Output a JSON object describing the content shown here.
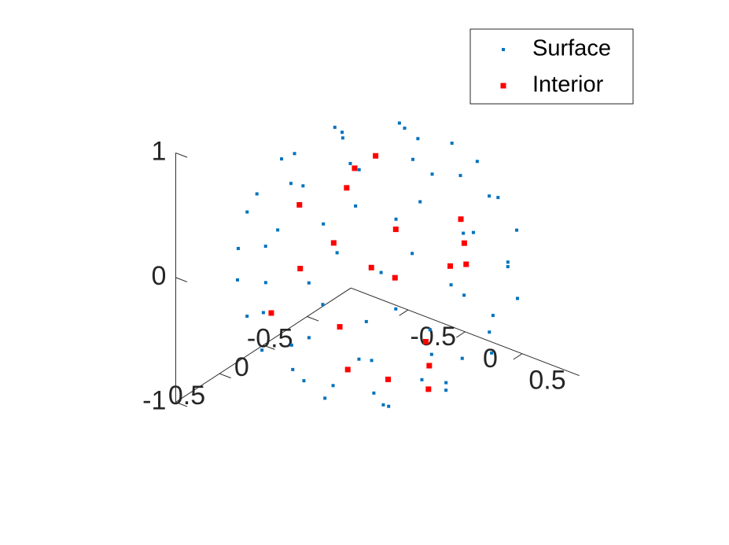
{
  "chart_data": {
    "type": "scatter3d",
    "xlim": [
      -1,
      1
    ],
    "ylim": [
      -1,
      1
    ],
    "zlim": [
      -1,
      1
    ],
    "xticks": [
      -0.5,
      0,
      0.5
    ],
    "yticks": [
      -0.5,
      0,
      0.5
    ],
    "zticks": [
      -1,
      0,
      1
    ],
    "view": {
      "azimuth": -37.5,
      "elevation": 30
    },
    "legend": "northeast",
    "series": [
      {
        "name": "Surface",
        "color": "#0072bd",
        "x": [
          0.31,
          0,
          -0.31,
          0,
          0.55,
          0.23,
          -0.23,
          -0.55,
          -0.55,
          -0.23,
          0.23,
          0.55,
          0.84,
          0.68,
          0.26,
          -0.26,
          -0.68,
          -0.84,
          -0.68,
          -0.26,
          0.26,
          0.68,
          0.95,
          0.69,
          0.25,
          -0.25,
          -0.69,
          -0.95,
          -0.95,
          -0.69,
          -0.25,
          0.25,
          0.69,
          0.95,
          0.98,
          0.85,
          0.49,
          0,
          -0.49,
          -0.85,
          -0.98,
          -0.85,
          -0.49,
          0,
          0.49,
          0.85,
          0.8,
          0.49,
          0,
          -0.49,
          -0.8,
          -0.8,
          -0.49,
          0,
          0.49,
          0.8,
          0.6,
          0.42,
          0,
          -0.42,
          -0.6,
          -0.42,
          0,
          0.42,
          0.22,
          -0.22,
          -0.22,
          0.22
        ],
        "y": [
          0,
          0.31,
          0,
          -0.31,
          0.23,
          0.55,
          0.55,
          0.23,
          -0.23,
          -0.55,
          -0.55,
          -0.23,
          0,
          0.49,
          0.8,
          0.8,
          0.49,
          0,
          -0.49,
          -0.8,
          -0.8,
          -0.49,
          0.25,
          0.69,
          0.95,
          0.95,
          0.69,
          0.25,
          -0.25,
          -0.69,
          -0.95,
          -0.95,
          -0.69,
          -0.25,
          0,
          0.49,
          0.85,
          0.98,
          0.85,
          0.49,
          0,
          -0.49,
          -0.85,
          -0.98,
          -0.85,
          -0.49,
          0.26,
          0.68,
          0.84,
          0.68,
          0.26,
          -0.26,
          -0.68,
          -0.84,
          -0.68,
          -0.26,
          0,
          0.42,
          0.6,
          0.42,
          0,
          -0.42,
          -0.6,
          -0.42,
          0.22,
          0.22,
          -0.22,
          -0.22
        ],
        "z": [
          0.95,
          0.95,
          0.95,
          0.95,
          0.8,
          0.8,
          0.8,
          0.8,
          0.8,
          0.8,
          0.8,
          0.8,
          0.55,
          0.55,
          0.55,
          0.55,
          0.55,
          0.55,
          0.55,
          0.55,
          0.55,
          0.55,
          0.2,
          0.2,
          0.2,
          0.2,
          0.2,
          0.2,
          0.2,
          0.2,
          0.2,
          0.2,
          0.2,
          0.2,
          -0.2,
          -0.2,
          -0.2,
          -0.2,
          -0.2,
          -0.2,
          -0.2,
          -0.2,
          -0.2,
          -0.2,
          -0.2,
          -0.2,
          -0.55,
          -0.55,
          -0.55,
          -0.55,
          -0.55,
          -0.55,
          -0.55,
          -0.55,
          -0.55,
          -0.55,
          -0.8,
          -0.8,
          -0.8,
          -0.8,
          -0.8,
          -0.8,
          -0.8,
          -0.8,
          -0.95,
          -0.95,
          -0.95,
          -0.95
        ]
      },
      {
        "name": "Interior",
        "color": "#ff0000",
        "x": [
          0.1,
          -0.3,
          0.5,
          -0.6,
          0.2,
          0.0,
          -0.4,
          0.6,
          0.3,
          -0.1,
          0.7,
          -0.5,
          0.4,
          0.1,
          -0.2,
          0.5,
          -0.7,
          0.3,
          0.0,
          -0.3
        ],
        "y": [
          0.2,
          0.5,
          -0.3,
          0.1,
          0.6,
          -0.2,
          -0.5,
          0.2,
          -0.6,
          0.3,
          -0.1,
          -0.3,
          0.4,
          -0.7,
          0.0,
          0.1,
          0.3,
          -0.2,
          0.5,
          -0.6
        ],
        "z": [
          0.1,
          0.6,
          0.4,
          -0.2,
          -0.5,
          -0.2,
          0.5,
          -0.7,
          0.0,
          -0.4,
          0.2,
          0.3,
          -0.6,
          -0.3,
          0.7,
          -0.4,
          -0.5,
          -0.8,
          0.4,
          -0.1
        ]
      }
    ]
  }
}
